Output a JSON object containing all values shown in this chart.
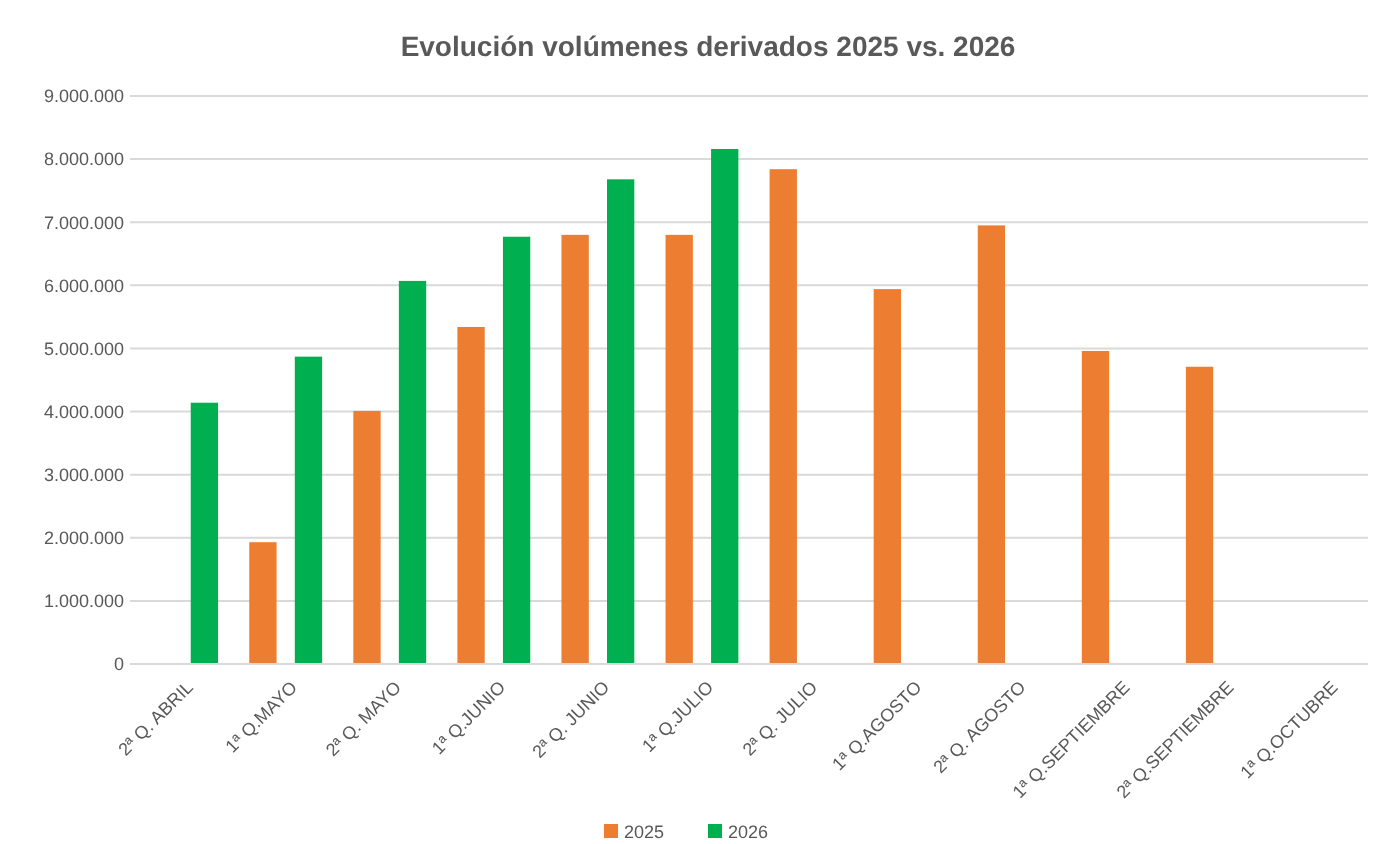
{
  "chart_data": {
    "type": "bar",
    "title": "Evolución volúmenes derivados 2025 vs. 2026",
    "categories": [
      "2ª Q. ABRIL",
      "1ª Q.MAYO",
      "2ª Q. MAYO",
      "1ª Q.JUNIO",
      "2ª Q. JUNIO",
      "1ª Q.JULIO",
      "2ª Q. JULIO",
      "1ª Q.AGOSTO",
      "2ª Q. AGOSTO",
      "1ª Q.SEPTIEMBRE",
      "2ª Q.SEPTIEMBRE",
      "1ª Q.OCTUBRE"
    ],
    "series": [
      {
        "name": "2025",
        "color": "#ed7d31",
        "values": [
          null,
          1930000,
          4010000,
          5340000,
          6800000,
          6800000,
          7840000,
          5940000,
          6950000,
          4960000,
          4710000,
          null
        ]
      },
      {
        "name": "2026",
        "color": "#00b050",
        "values": [
          4140000,
          4870000,
          6070000,
          6770000,
          7680000,
          8160000,
          null,
          null,
          null,
          null,
          null,
          null
        ]
      }
    ],
    "ylim": [
      0,
      9000000
    ],
    "yticks": [
      0,
      {
        "value": 1000000,
        "label": "1.000.000"
      },
      {
        "value": 2000000,
        "label": "2.000.000"
      },
      {
        "value": 3000000,
        "label": "3.000.000"
      },
      {
        "value": 4000000,
        "label": "4.000.000"
      },
      {
        "value": 5000000,
        "label": "5.000.000"
      },
      {
        "value": 6000000,
        "label": "6.000.000"
      },
      {
        "value": 7000000,
        "label": "7.000.000"
      },
      {
        "value": 8000000,
        "label": "8.000.000"
      },
      {
        "value": 9000000,
        "label": "9.000.000"
      }
    ],
    "grid": "y",
    "legend": "bottom"
  }
}
